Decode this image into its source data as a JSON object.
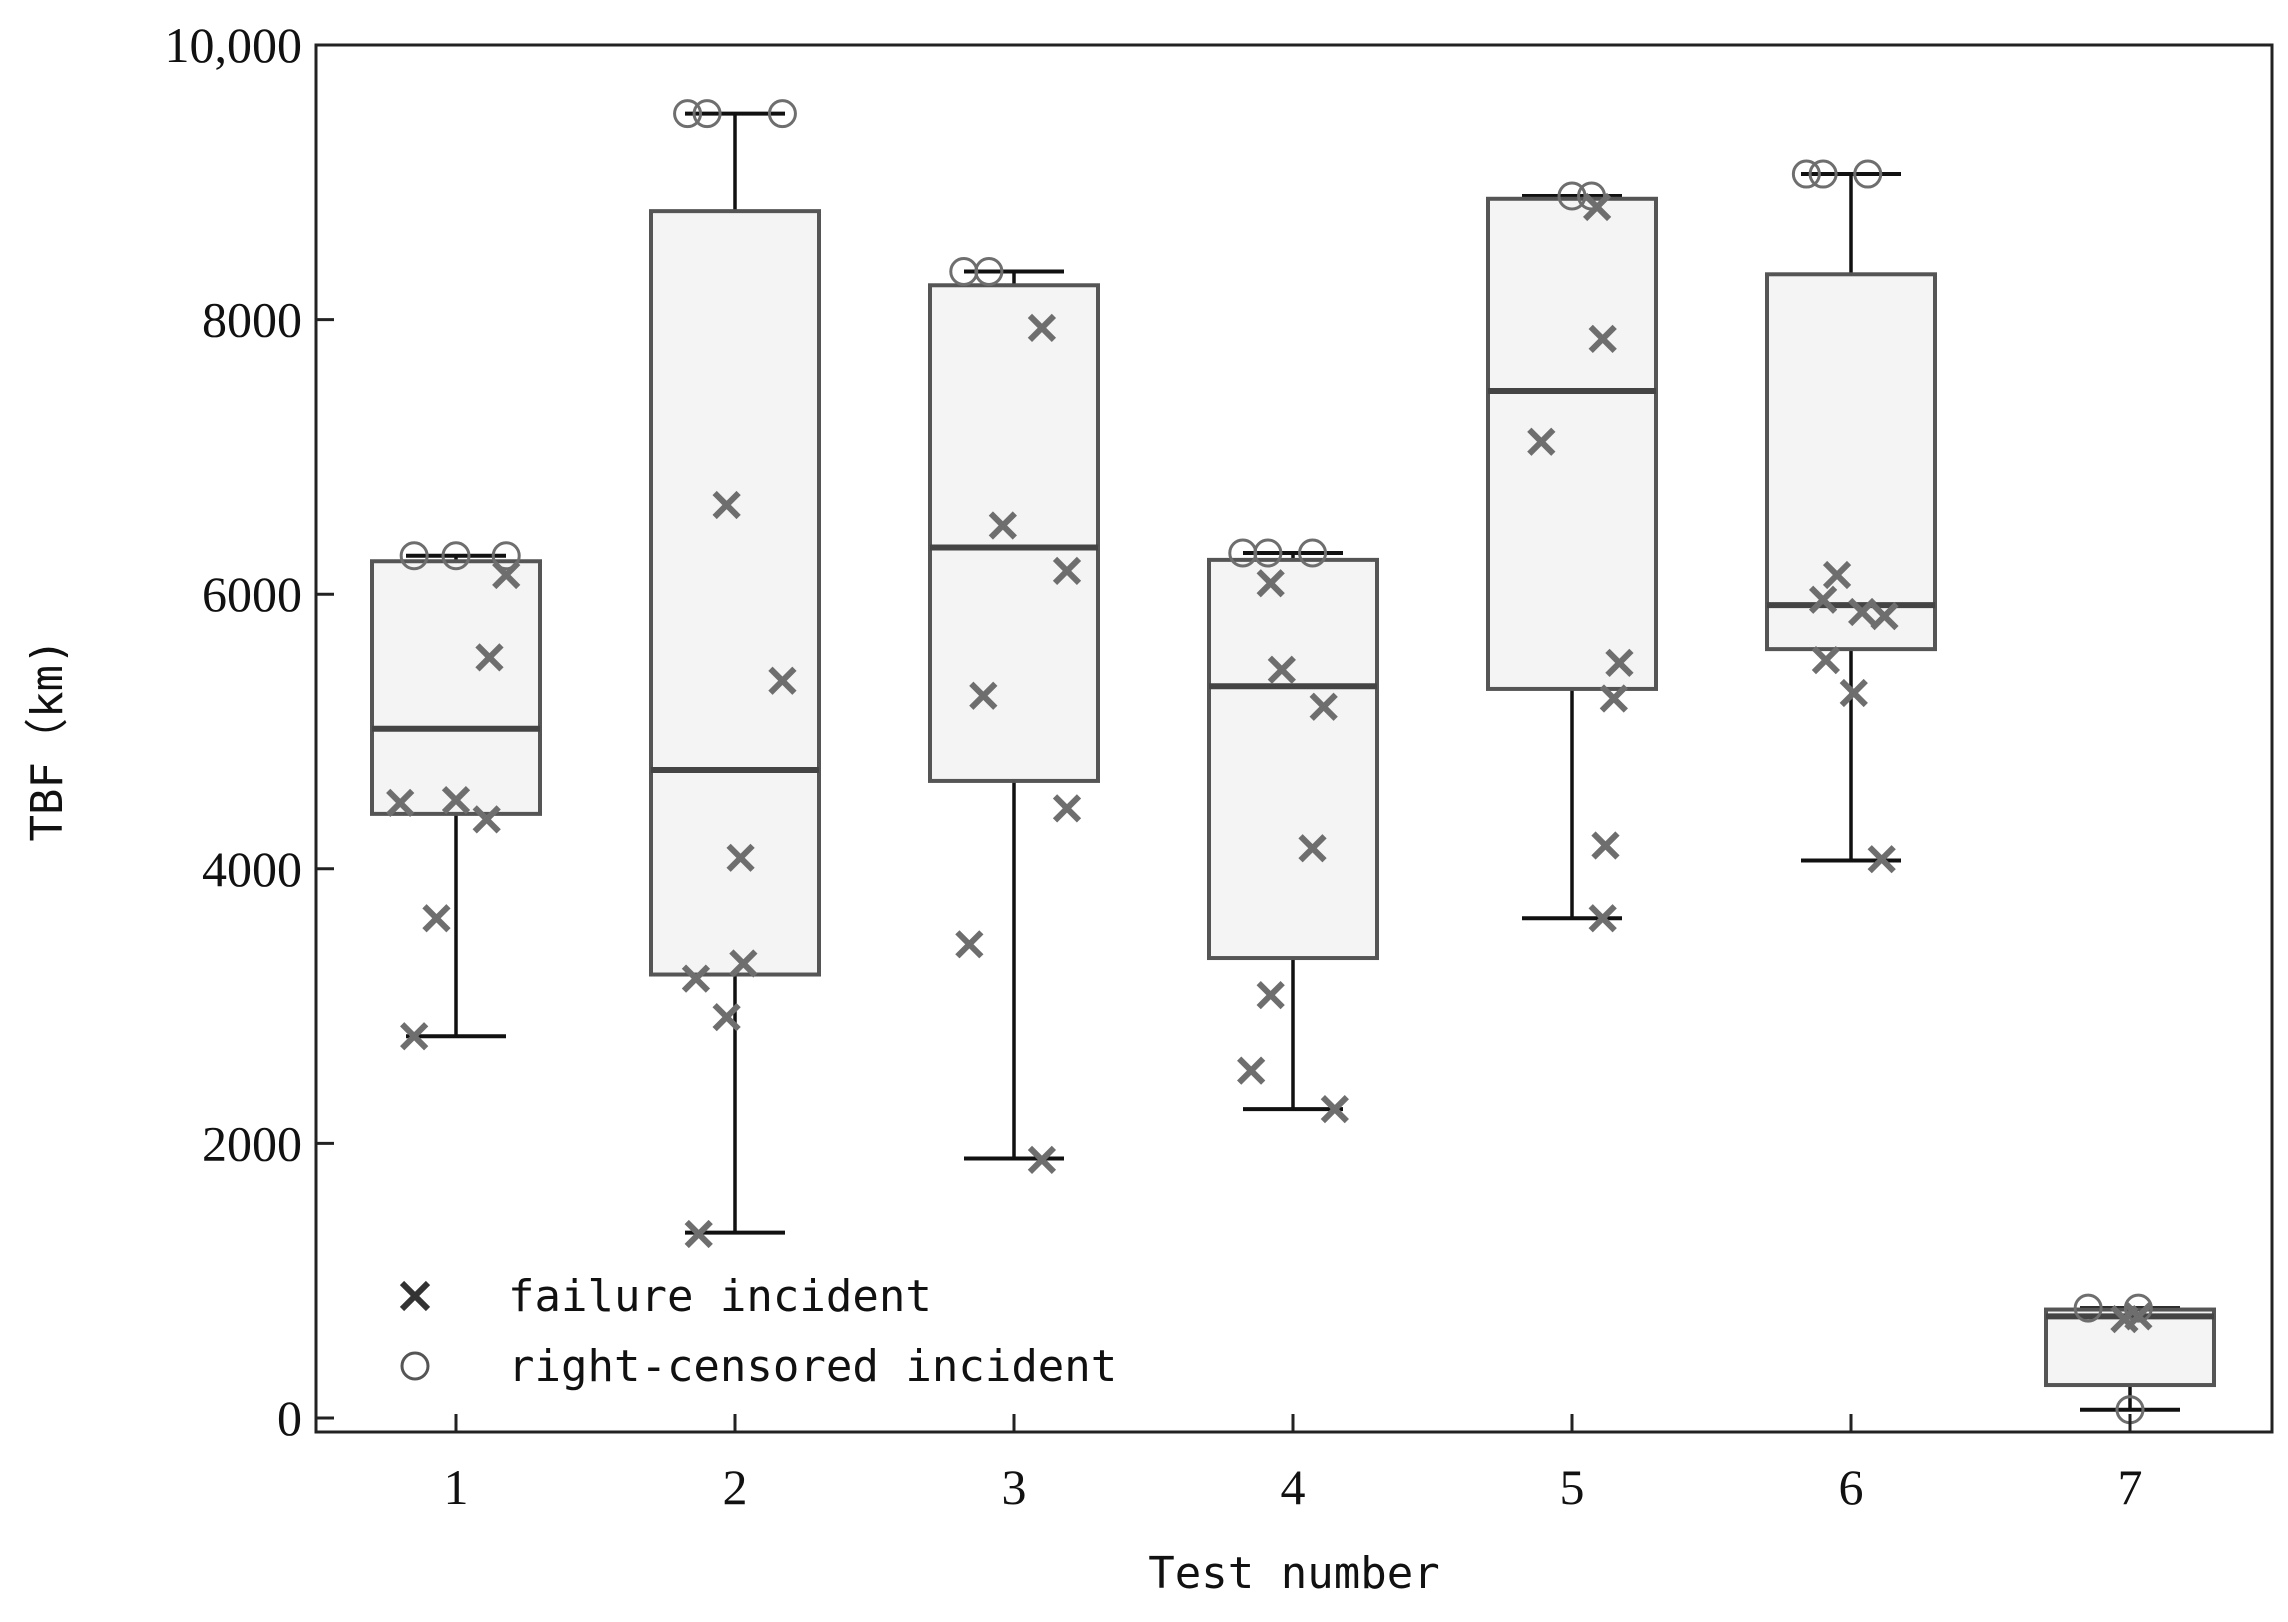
{
  "chart_data": {
    "type": "box",
    "xlabel": "Test number",
    "ylabel": "TBF（km)",
    "ylim": [
      -100,
      10000
    ],
    "yticks": [
      0,
      2000,
      4000,
      6000,
      8000,
      10000
    ],
    "ytick_labels": [
      "0",
      "2000",
      "4000",
      "6000",
      "8000",
      "10,000"
    ],
    "categories": [
      "1",
      "2",
      "3",
      "4",
      "5",
      "6",
      "7"
    ],
    "legend": {
      "position": "lower-left",
      "failure_label": "failure incident",
      "censored_label": "right-censored incident"
    },
    "boxes": [
      {
        "test": "1",
        "whisker_low": 2780,
        "q1": 4400,
        "median": 5020,
        "q3": 6240,
        "whisker_high": 6280,
        "failures": [
          [
            -0.15,
            2780
          ],
          [
            -0.07,
            3640
          ],
          [
            -0.2,
            4480
          ],
          [
            0.0,
            4500
          ],
          [
            0.11,
            4360
          ],
          [
            0.12,
            5540
          ],
          [
            0.18,
            6140
          ]
        ],
        "censored": [
          [
            -0.15,
            6280
          ],
          [
            0.0,
            6280
          ],
          [
            0.18,
            6280
          ]
        ]
      },
      {
        "test": "2",
        "whisker_low": 1350,
        "q1": 3230,
        "median": 4720,
        "q3": 8790,
        "whisker_high": 9500,
        "failures": [
          [
            -0.13,
            1340
          ],
          [
            -0.14,
            3200
          ],
          [
            -0.03,
            2920
          ],
          [
            0.03,
            3310
          ],
          [
            0.02,
            4080
          ],
          [
            -0.03,
            6650
          ],
          [
            0.17,
            5370
          ]
        ],
        "censored": [
          [
            -0.17,
            9500
          ],
          [
            -0.1,
            9500
          ],
          [
            0.17,
            9500
          ]
        ]
      },
      {
        "test": "3",
        "whisker_low": 1890,
        "q1": 4640,
        "median": 6340,
        "q3": 8250,
        "whisker_high": 8350,
        "failures": [
          [
            -0.16,
            3450
          ],
          [
            -0.11,
            5260
          ],
          [
            -0.04,
            6500
          ],
          [
            0.1,
            1880
          ],
          [
            0.19,
            4440
          ],
          [
            0.19,
            6170
          ],
          [
            0.1,
            7940
          ]
        ],
        "censored": [
          [
            -0.18,
            8350
          ],
          [
            -0.09,
            8350
          ]
        ]
      },
      {
        "test": "4",
        "whisker_low": 2250,
        "q1": 3350,
        "median": 5330,
        "q3": 6250,
        "whisker_high": 6300,
        "failures": [
          [
            -0.15,
            2530
          ],
          [
            -0.08,
            3080
          ],
          [
            -0.08,
            6080
          ],
          [
            -0.04,
            5450
          ],
          [
            0.07,
            4150
          ],
          [
            0.11,
            5180
          ],
          [
            0.15,
            2250
          ]
        ],
        "censored": [
          [
            -0.18,
            6300
          ],
          [
            -0.09,
            6300
          ],
          [
            0.07,
            6300
          ]
        ]
      },
      {
        "test": "5",
        "whisker_low": 3640,
        "q1": 5310,
        "median": 7480,
        "q3": 8880,
        "whisker_high": 8900,
        "failures": [
          [
            -0.11,
            7110
          ],
          [
            0.11,
            3640
          ],
          [
            0.12,
            4170
          ],
          [
            0.15,
            5240
          ],
          [
            0.17,
            5500
          ],
          [
            0.11,
            7860
          ],
          [
            0.09,
            8820
          ]
        ],
        "censored": [
          [
            0.0,
            8900
          ],
          [
            0.07,
            8900
          ]
        ]
      },
      {
        "test": "6",
        "whisker_low": 4060,
        "q1": 5600,
        "median": 5920,
        "q3": 8330,
        "whisker_high": 9060,
        "failures": [
          [
            -0.09,
            5520
          ],
          [
            -0.1,
            5960
          ],
          [
            -0.05,
            6140
          ],
          [
            0.01,
            5280
          ],
          [
            0.04,
            5870
          ],
          [
            0.12,
            5840
          ],
          [
            0.11,
            4070
          ]
        ],
        "censored": [
          [
            -0.16,
            9060
          ],
          [
            -0.1,
            9060
          ],
          [
            0.06,
            9060
          ]
        ]
      },
      {
        "test": "7",
        "whisker_low": 60,
        "q1": 240,
        "median": 740,
        "q3": 790,
        "whisker_high": 800,
        "failures": [
          [
            -0.02,
            720
          ],
          [
            0.03,
            740
          ]
        ],
        "censored": [
          [
            -0.15,
            800
          ],
          [
            0.03,
            800
          ],
          [
            0.0,
            60
          ]
        ]
      }
    ]
  }
}
